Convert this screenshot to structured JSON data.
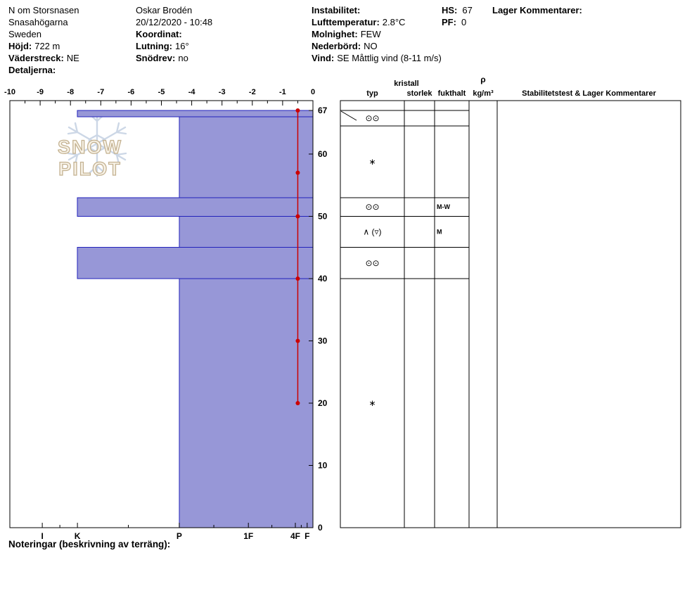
{
  "header": {
    "pit": {
      "name": "N om Storsnasen",
      "area": "Snasahögarna",
      "country": "Sweden",
      "elevation_label": "Höjd:",
      "elevation": "722 m",
      "aspect_label": "Väderstreck:",
      "aspect": "NE",
      "details_label": "Detaljerna:"
    },
    "observer": {
      "name": "Oskar Brodén",
      "datetime": "20/12/2020 - 10:48",
      "coordinates_label": "Koordinat:",
      "slope_label": "Lutning:",
      "slope": "16°",
      "snowdrift_label": "Snödrev:",
      "snowdrift": "no"
    },
    "weather": {
      "instability_label": "Instabilitet:",
      "air_temp_label": "Lufttemperatur:",
      "air_temp": "2.8°C",
      "clouds_label": "Molnighet:",
      "clouds": "FEW",
      "precip_label": "Nederbörd:",
      "precip": "NO",
      "wind_label": "Vind:",
      "wind": "SE Måttlig vind (8-11 m/s)"
    },
    "totals": {
      "hs_label": "HS:",
      "hs": "67",
      "pf_label": "PF:",
      "pf": "0"
    },
    "layer_comments_label": "Lager Kommentarer:"
  },
  "logo": {
    "text": "SNOW PILOT"
  },
  "chart_data": {
    "type": "snow-profile",
    "temp_axis": {
      "min": -10,
      "max": 0,
      "ticks": [
        -10,
        -9,
        -8,
        -7,
        -6,
        -5,
        -4,
        -3,
        -2,
        -1,
        0
      ]
    },
    "depth_axis": {
      "max": 67,
      "ticks": [
        0,
        10,
        20,
        30,
        40,
        50,
        60,
        67
      ]
    },
    "hardness_axis": {
      "labels": [
        "I",
        "K",
        "P",
        "1F",
        "4F",
        "F"
      ],
      "fractions": [
        0.107,
        0.223,
        0.559,
        0.787,
        0.942,
        0.981
      ]
    },
    "layers": [
      {
        "top_cm": 67,
        "bottom_cm": 66,
        "hardness": "K"
      },
      {
        "top_cm": 66,
        "bottom_cm": 53,
        "hardness": "P"
      },
      {
        "top_cm": 53,
        "bottom_cm": 50,
        "hardness": "K"
      },
      {
        "top_cm": 50,
        "bottom_cm": 45,
        "hardness": "P"
      },
      {
        "top_cm": 45,
        "bottom_cm": 40,
        "hardness": "K"
      },
      {
        "top_cm": 40,
        "bottom_cm": 0,
        "hardness": "P"
      }
    ],
    "temperature_profile": [
      {
        "depth_cm": 67,
        "temp_c": -0.5
      },
      {
        "depth_cm": 57,
        "temp_c": -0.5
      },
      {
        "depth_cm": 50,
        "temp_c": -0.5
      },
      {
        "depth_cm": 40,
        "temp_c": -0.5
      },
      {
        "depth_cm": 30,
        "temp_c": -0.5
      },
      {
        "depth_cm": 20,
        "temp_c": -0.5
      }
    ],
    "colors": {
      "bar_fill": "#9797d7",
      "bar_stroke": "#2222bb",
      "temp_line": "#cc0000"
    }
  },
  "grain_table": {
    "headers": {
      "kristall": "kristall",
      "typ": "typ",
      "storlek": "storlek",
      "fukthalt": "fukthalt",
      "rho": "ρ",
      "kg": "kg/m³",
      "stab": "Stabilitetstest & Lager Kommentarer"
    },
    "rows": [
      {
        "top_cm": 67,
        "bottom_cm": 64.5,
        "grain_symbol": "⊙⊙",
        "size": "",
        "moisture": "",
        "density": "",
        "comments": ""
      },
      {
        "top_cm": 64.5,
        "bottom_cm": 53,
        "grain_symbol": "∗",
        "size": "",
        "moisture": "",
        "density": "",
        "comments": ""
      },
      {
        "top_cm": 53,
        "bottom_cm": 50,
        "grain_symbol": "⊙⊙",
        "size": "",
        "moisture": "M-W",
        "density": "",
        "comments": ""
      },
      {
        "top_cm": 50,
        "bottom_cm": 45,
        "grain_symbol": "∧ (▿)",
        "size": "",
        "moisture": "M",
        "density": "",
        "comments": ""
      },
      {
        "top_cm": 45,
        "bottom_cm": 40,
        "grain_symbol": "⊙⊙",
        "size": "",
        "moisture": "",
        "density": "",
        "comments": ""
      },
      {
        "top_cm": 40,
        "bottom_cm": 0,
        "grain_symbol": "∗",
        "size": "",
        "moisture": "",
        "density": "",
        "comments": ""
      }
    ]
  },
  "footer": {
    "notes_label": "Noteringar (beskrivning av terräng):"
  }
}
